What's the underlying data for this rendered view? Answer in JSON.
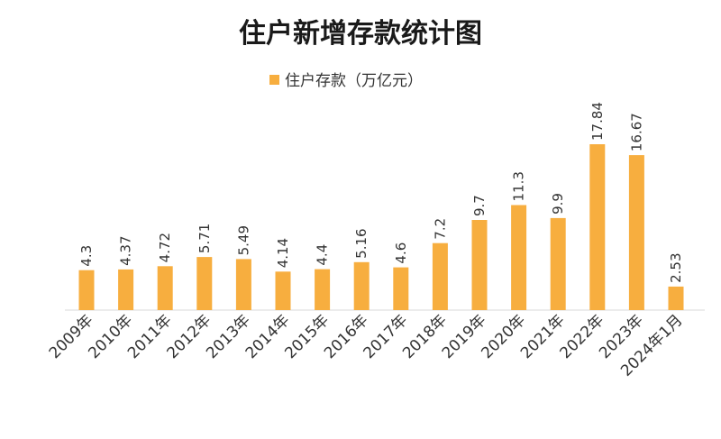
{
  "chart_data": {
    "type": "bar",
    "title": "住户新增存款统计图",
    "categories": [
      "2009年",
      "2010年",
      "2011年",
      "2012年",
      "2013年",
      "2014年",
      "2015年",
      "2016年",
      "2017年",
      "2018年",
      "2019年",
      "2020年",
      "2021年",
      "2022年",
      "2023年",
      "2024年1月"
    ],
    "series": [
      {
        "name": "住户存款（万亿元）",
        "values": [
          4.3,
          4.37,
          4.72,
          5.71,
          5.49,
          4.14,
          4.4,
          5.16,
          4.6,
          7.2,
          9.7,
          11.3,
          9.9,
          17.84,
          16.67,
          2.53
        ],
        "labels": [
          "4.3",
          "4.37",
          "4.72",
          "5.71",
          "5.49",
          "4.14",
          "4.4",
          "5.16",
          "4.6",
          "7.2",
          "9.7",
          "11.3",
          "9.9",
          "17.84",
          "16.67",
          "2.53"
        ],
        "color": "#f7ae3f"
      }
    ],
    "xlabel": "",
    "ylabel": "",
    "ylim": [
      0,
      18
    ],
    "grid": false,
    "legend_position": "top-center",
    "data_labels": true,
    "data_label_rotation": "vertical"
  }
}
